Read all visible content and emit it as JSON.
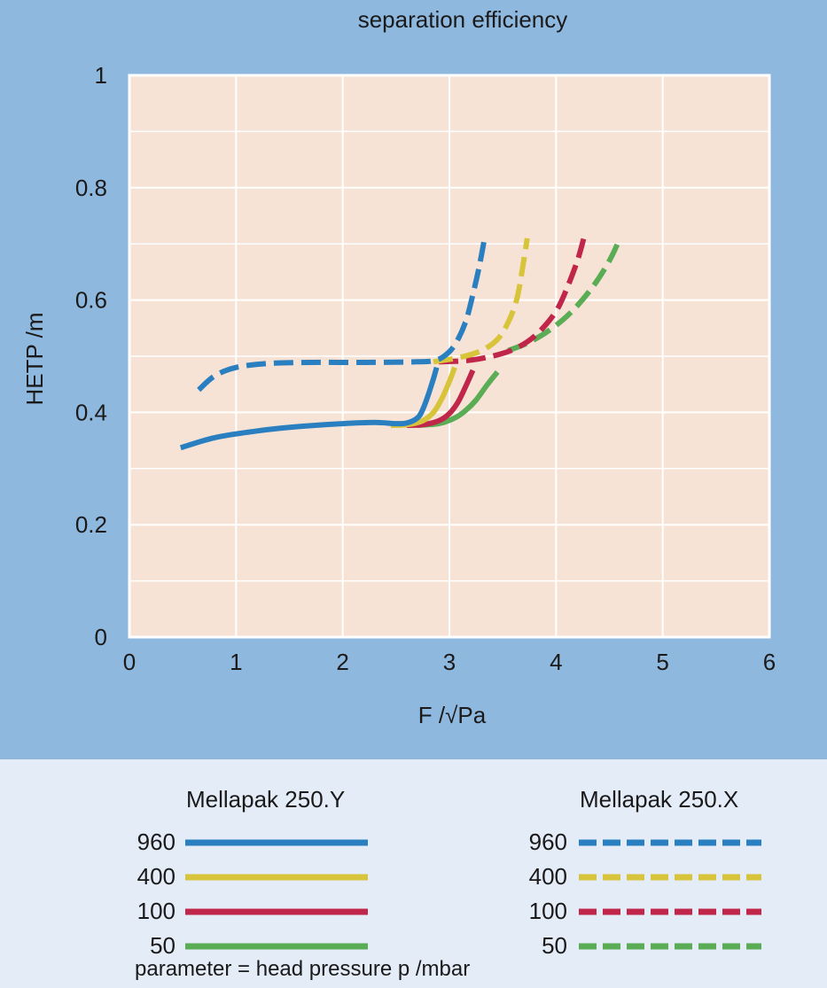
{
  "chart_data": {
    "type": "line",
    "title": "separation efficiency",
    "xlabel": "F /√Pa",
    "ylabel": "HETP /m",
    "xlim": [
      0,
      6
    ],
    "ylim": [
      0,
      1
    ],
    "xticks": [
      "0",
      "1",
      "2",
      "3",
      "4",
      "5",
      "6"
    ],
    "yticks": [
      "0",
      "0.2",
      "0.4",
      "0.6",
      "0.8",
      "1"
    ],
    "grid": true,
    "series": [
      {
        "name": "Mellapak 250.Y 960 mbar",
        "color": "#2a7fc0",
        "style": "solid",
        "points": [
          [
            0.48,
            0.337
          ],
          [
            0.8,
            0.355
          ],
          [
            1.2,
            0.367
          ],
          [
            1.6,
            0.375
          ],
          [
            2.0,
            0.38
          ],
          [
            2.3,
            0.382
          ],
          [
            2.5,
            0.38
          ],
          [
            2.6,
            0.381
          ],
          [
            2.7,
            0.39
          ],
          [
            2.75,
            0.405
          ],
          [
            2.8,
            0.43
          ],
          [
            2.85,
            0.46
          ],
          [
            2.88,
            0.48
          ]
        ]
      },
      {
        "name": "Mellapak 250.Y 400 mbar",
        "color": "#d8c43a",
        "style": "solid",
        "points": [
          [
            2.45,
            0.377
          ],
          [
            2.6,
            0.378
          ],
          [
            2.75,
            0.385
          ],
          [
            2.85,
            0.4
          ],
          [
            2.93,
            0.425
          ],
          [
            3.0,
            0.455
          ],
          [
            3.05,
            0.48
          ]
        ]
      },
      {
        "name": "Mellapak 250.Y 100 mbar",
        "color": "#c0264a",
        "style": "solid",
        "points": [
          [
            2.6,
            0.377
          ],
          [
            2.75,
            0.378
          ],
          [
            2.9,
            0.385
          ],
          [
            3.0,
            0.398
          ],
          [
            3.08,
            0.418
          ],
          [
            3.15,
            0.445
          ],
          [
            3.22,
            0.475
          ]
        ]
      },
      {
        "name": "Mellapak 250.Y 50 mbar",
        "color": "#5aac55",
        "style": "solid",
        "points": [
          [
            2.7,
            0.377
          ],
          [
            2.9,
            0.38
          ],
          [
            3.05,
            0.39
          ],
          [
            3.15,
            0.403
          ],
          [
            3.25,
            0.422
          ],
          [
            3.35,
            0.448
          ],
          [
            3.45,
            0.472
          ]
        ]
      },
      {
        "name": "Mellapak 250.X 960 mbar",
        "color": "#2a7fc0",
        "style": "dashed",
        "points": [
          [
            0.65,
            0.44
          ],
          [
            0.8,
            0.465
          ],
          [
            1.0,
            0.48
          ],
          [
            1.3,
            0.487
          ],
          [
            1.7,
            0.489
          ],
          [
            2.2,
            0.489
          ],
          [
            2.7,
            0.49
          ],
          [
            2.85,
            0.492
          ],
          [
            2.95,
            0.5
          ],
          [
            3.05,
            0.52
          ],
          [
            3.15,
            0.56
          ],
          [
            3.22,
            0.61
          ],
          [
            3.28,
            0.66
          ],
          [
            3.33,
            0.71
          ]
        ]
      },
      {
        "name": "Mellapak 250.X 400 mbar",
        "color": "#d8c43a",
        "style": "dashed",
        "points": [
          [
            2.85,
            0.49
          ],
          [
            3.1,
            0.498
          ],
          [
            3.3,
            0.51
          ],
          [
            3.45,
            0.53
          ],
          [
            3.55,
            0.56
          ],
          [
            3.63,
            0.6
          ],
          [
            3.68,
            0.65
          ],
          [
            3.73,
            0.71
          ]
        ]
      },
      {
        "name": "Mellapak 250.X 100 mbar",
        "color": "#c0264a",
        "style": "dashed",
        "points": [
          [
            2.9,
            0.49
          ],
          [
            3.2,
            0.493
          ],
          [
            3.5,
            0.505
          ],
          [
            3.7,
            0.522
          ],
          [
            3.85,
            0.545
          ],
          [
            4.0,
            0.58
          ],
          [
            4.1,
            0.62
          ],
          [
            4.2,
            0.67
          ],
          [
            4.26,
            0.71
          ]
        ]
      },
      {
        "name": "Mellapak 250.X 50 mbar",
        "color": "#5aac55",
        "style": "dashed",
        "points": [
          [
            3.55,
            0.51
          ],
          [
            3.75,
            0.525
          ],
          [
            3.95,
            0.548
          ],
          [
            4.15,
            0.58
          ],
          [
            4.35,
            0.625
          ],
          [
            4.5,
            0.67
          ],
          [
            4.6,
            0.71
          ]
        ]
      }
    ]
  },
  "legend": {
    "group_y": {
      "title": "Mellapak 250.Y",
      "entries": [
        "960",
        "400",
        "100",
        "50"
      ]
    },
    "group_x": {
      "title": "Mellapak 250.X",
      "entries": [
        "960",
        "400",
        "100",
        "50"
      ]
    },
    "colors": [
      "#2a7fc0",
      "#d8c43a",
      "#c0264a",
      "#5aac55"
    ]
  },
  "footnote": "parameter = head pressure p /mbar"
}
